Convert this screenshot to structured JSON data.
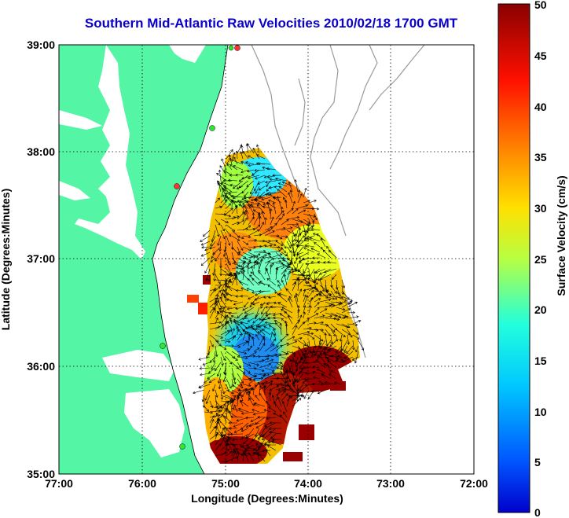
{
  "title": "Southern Mid-Atlantic Raw Velocities 2010/02/18 1700 GMT",
  "x_axis": {
    "label": "Longitude (Degrees:Minutes)",
    "ticks": [
      "77:00",
      "76:00",
      "75:00",
      "74:00",
      "73:00",
      "72:00"
    ]
  },
  "y_axis": {
    "label": "Latitude (Degrees:Minutes)",
    "ticks": [
      "39:00",
      "38:00",
      "37:00",
      "36:00",
      "35:00"
    ]
  },
  "colorbar": {
    "label": "Surface Velocity (cm/s)",
    "ticks": [
      "50",
      "45",
      "40",
      "35",
      "30",
      "25",
      "20",
      "15",
      "10",
      "5",
      "0"
    ],
    "range": [
      0,
      50
    ]
  },
  "colors": {
    "land": "#55f5a6",
    "water": "#ffffff",
    "title": "#0a00cc",
    "stations": "#2ee82e"
  },
  "map": {
    "lon_range": [
      -77,
      -72
    ],
    "lat_range": [
      35,
      39
    ],
    "grid": true,
    "features": [
      "coastline",
      "bathymetry-contours",
      "hf-radar-stations",
      "velocity-field",
      "current-vectors"
    ]
  }
}
